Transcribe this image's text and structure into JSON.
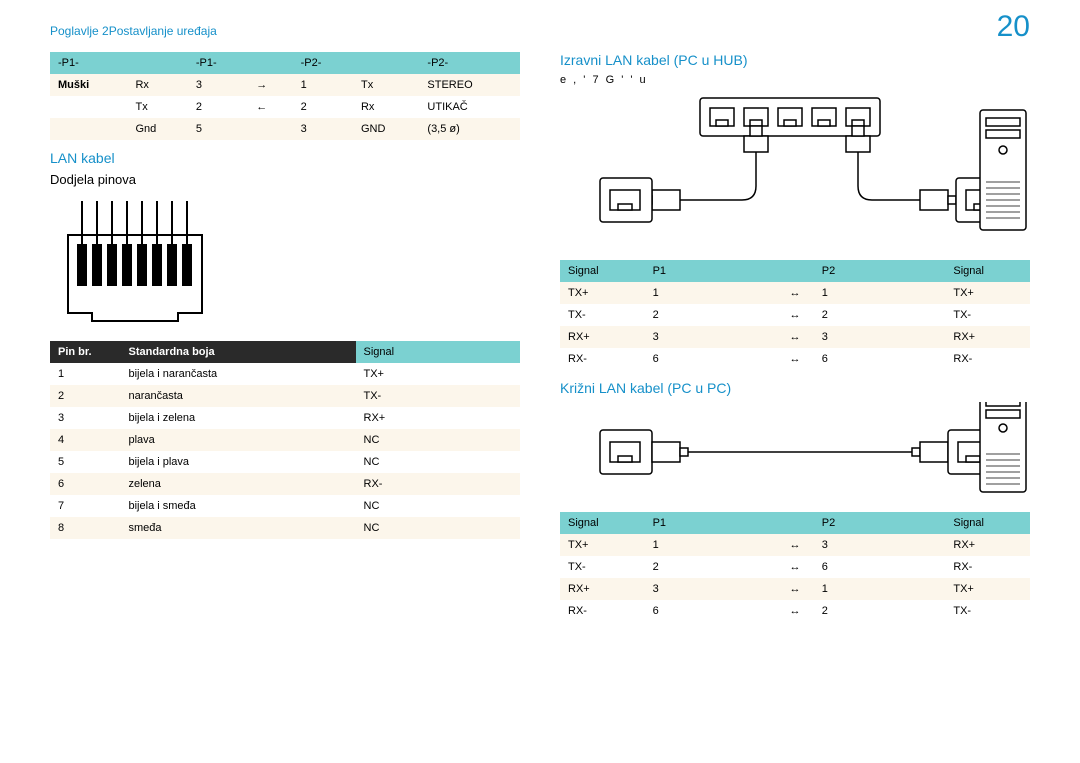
{
  "header": {
    "chapter": "Poglavlje 2",
    "title": "Postavljanje uređaja",
    "page": "20"
  },
  "topTable": {
    "rows": [
      [
        "-P1-",
        "",
        "-P1-",
        "",
        "-P2-",
        "",
        "-P2-"
      ],
      [
        "Muški",
        "Rx",
        "3",
        "→",
        "1",
        "Tx",
        "STEREO"
      ],
      [
        "",
        "Tx",
        "2",
        "←",
        "2",
        "Rx",
        "UTIKAČ"
      ],
      [
        "",
        "Gnd",
        "5",
        "",
        "3",
        "GND",
        "(3,5 ø)"
      ]
    ]
  },
  "lan": {
    "title": "LAN kabel",
    "subtitle": "Dodjela pinova",
    "pinHeaders": {
      "pin": "Pin br.",
      "color": "Standardna boja",
      "signal": "Signal"
    },
    "pins": [
      {
        "n": "1",
        "color": "bijela i narančasta",
        "sig": "TX+"
      },
      {
        "n": "2",
        "color": "narančasta",
        "sig": "TX-"
      },
      {
        "n": "3",
        "color": "bijela i zelena",
        "sig": "RX+"
      },
      {
        "n": "4",
        "color": "plava",
        "sig": "NC"
      },
      {
        "n": "5",
        "color": "bijela i plava",
        "sig": "NC"
      },
      {
        "n": "6",
        "color": "zelena",
        "sig": "RX-"
      },
      {
        "n": "7",
        "color": "bijela i smeđa",
        "sig": "NC"
      },
      {
        "n": "8",
        "color": "smeđa",
        "sig": "NC"
      }
    ]
  },
  "direct": {
    "title": "Izravni LAN kabel (PC u HUB)",
    "gearish": "e , ' 7     G ' '   u",
    "headers": [
      "Signal",
      "P1",
      "",
      "P2",
      "Signal"
    ],
    "rows": [
      [
        "TX+",
        "1",
        "↔",
        "1",
        "TX+"
      ],
      [
        "TX-",
        "2",
        "↔",
        "2",
        "TX-"
      ],
      [
        "RX+",
        "3",
        "↔",
        "3",
        "RX+"
      ],
      [
        "RX-",
        "6",
        "↔",
        "6",
        "RX-"
      ]
    ]
  },
  "cross": {
    "title": "Križni LAN kabel (PC u PC)",
    "headers": [
      "Signal",
      "P1",
      "",
      "P2",
      "Signal"
    ],
    "rows": [
      [
        "TX+",
        "1",
        "↔",
        "3",
        "RX+"
      ],
      [
        "TX-",
        "2",
        "↔",
        "6",
        "RX-"
      ],
      [
        "RX+",
        "3",
        "↔",
        "1",
        "TX+"
      ],
      [
        "RX-",
        "6",
        "↔",
        "2",
        "TX-"
      ]
    ]
  },
  "colors": {
    "accent": "#1690c9",
    "headerTeal": "#7bd1d1",
    "altRow": "#fcf6eb"
  }
}
